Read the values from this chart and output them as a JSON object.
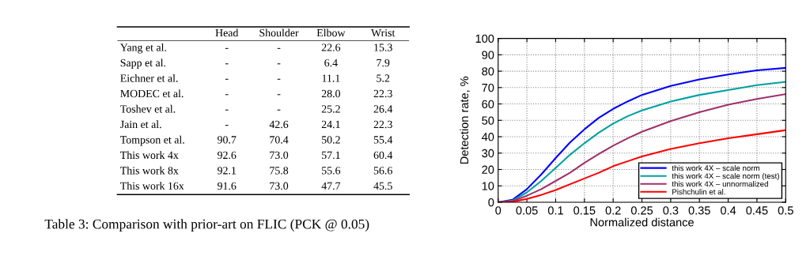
{
  "chart_data": [
    {
      "type": "other",
      "categories": [
        "Head",
        "Shoulder",
        "Elbow",
        "Wrist"
      ],
      "y_categories": [
        "Yang et al.",
        "Sapp et al.",
        "Eichner et al.",
        "MODEC et al.",
        "Toshev et al.",
        "Jain et al.",
        "Tompson et al.",
        "This work 4x",
        "This work 8x",
        "This work 16x"
      ],
      "cell_labels": [
        [
          "-",
          "-",
          "22.6",
          "15.3"
        ],
        [
          "-",
          "-",
          "6.4",
          "7.9"
        ],
        [
          "-",
          "-",
          "11.1",
          "5.2"
        ],
        [
          "-",
          "-",
          "28.0",
          "22.3"
        ],
        [
          "-",
          "-",
          "25.2",
          "26.4"
        ],
        [
          "-",
          "42.6",
          "24.1",
          "22.3"
        ],
        [
          "90.7",
          "70.4",
          "50.2",
          "55.4"
        ],
        [
          "92.6",
          "73.0",
          "57.1",
          "60.4"
        ],
        [
          "92.1",
          "75.8",
          "55.6",
          "56.6"
        ],
        [
          "91.6",
          "73.0",
          "47.7",
          "45.5"
        ]
      ],
      "annotations": [
        "Table 3: Comparison with prior-art on FLIC (PCK @ 0.05)"
      ]
    },
    {
      "type": "line",
      "xlabel": "Normalized distance",
      "ylabel": "Detection rate, %",
      "x": [
        0,
        0.025,
        0.05,
        0.075,
        0.1,
        0.125,
        0.15,
        0.175,
        0.2,
        0.225,
        0.25,
        0.3,
        0.35,
        0.4,
        0.45,
        0.5
      ],
      "series": [
        {
          "name": "this work 4X – scale norm",
          "color": "#0000ff",
          "values": [
            0,
            1.5,
            8,
            17,
            27,
            36.5,
            44.5,
            51.5,
            57,
            61.5,
            65.5,
            71,
            75,
            78,
            80.5,
            82
          ]
        },
        {
          "name": "this work 4X – scale norm (test)",
          "color": "#00a0a0",
          "values": [
            0,
            1,
            6,
            13,
            21,
            29,
            36,
            42.5,
            48,
            52.5,
            56,
            61.5,
            65.5,
            68.5,
            71.5,
            73.5
          ]
        },
        {
          "name": "this work 4X – unnormalized",
          "color": "#a0306a",
          "values": [
            0,
            0.7,
            4,
            8,
            13,
            18,
            24,
            29.5,
            34.5,
            39,
            43,
            49.5,
            55,
            59.5,
            63,
            66
          ]
        },
        {
          "name": "Pishchulin et al.",
          "color": "#ff0000",
          "values": [
            0,
            0.3,
            2,
            4.5,
            7.5,
            11,
            14.5,
            18,
            22,
            25,
            28,
            32.5,
            36,
            39,
            41.5,
            44
          ]
        }
      ],
      "xlim": [
        0,
        0.5
      ],
      "ylim": [
        0,
        100
      ],
      "xticks": [
        0,
        0.05,
        0.1,
        0.15,
        0.2,
        0.25,
        0.3,
        0.35,
        0.4,
        0.45,
        0.5
      ],
      "yticks": [
        0,
        10,
        20,
        30,
        40,
        50,
        60,
        70,
        80,
        90,
        100
      ],
      "grid": true,
      "legend": "bottom right",
      "line_style": "solid"
    }
  ]
}
